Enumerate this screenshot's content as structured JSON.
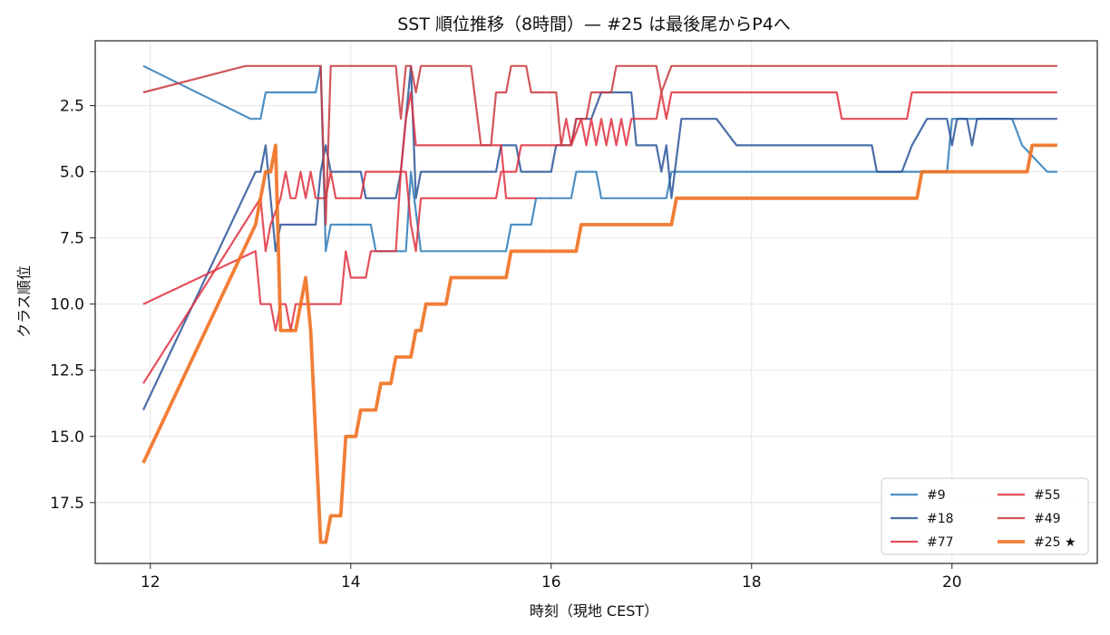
{
  "chart_data": {
    "type": "line",
    "title": "SST 順位推移（8時間）— #25 は最後尾からP4へ",
    "xlabel": "時刻（現地 CEST）",
    "ylabel": "クラス順位",
    "xlim": [
      11.45,
      21.45
    ],
    "ylim": [
      19.8,
      0.05
    ],
    "y_inverted": true,
    "grid": true,
    "legend_position": "lower-right",
    "legend_columns": 2,
    "x_ticks": [
      12,
      14,
      16,
      18,
      20
    ],
    "x_tick_labels": [
      "12",
      "14",
      "16",
      "18",
      "20"
    ],
    "y_ticks": [
      2.5,
      5,
      7.5,
      10,
      12.5,
      15,
      17.5
    ],
    "y_tick_labels": [
      "2.5",
      "5.0",
      "7.5",
      "10.0",
      "12.5",
      "15.0",
      "17.5"
    ],
    "series": [
      {
        "name": "#9",
        "color": "#2f7bb8",
        "width": 2.2,
        "opacity": 0.85,
        "points": [
          [
            11.93,
            1
          ],
          [
            13.0,
            3
          ],
          [
            13.1,
            3
          ],
          [
            13.15,
            2
          ],
          [
            13.65,
            2
          ],
          [
            13.7,
            1
          ],
          [
            13.75,
            8
          ],
          [
            13.8,
            7
          ],
          [
            14.2,
            7
          ],
          [
            14.25,
            8
          ],
          [
            14.55,
            8
          ],
          [
            14.6,
            5
          ],
          [
            14.7,
            8
          ],
          [
            15.55,
            8
          ],
          [
            15.6,
            7
          ],
          [
            15.8,
            7
          ],
          [
            15.85,
            6
          ],
          [
            16.2,
            6
          ],
          [
            16.25,
            5
          ],
          [
            16.45,
            5
          ],
          [
            16.5,
            6
          ],
          [
            17.15,
            6
          ],
          [
            17.2,
            5
          ],
          [
            19.95,
            5
          ],
          [
            20.0,
            3
          ],
          [
            20.6,
            3
          ],
          [
            20.7,
            4
          ],
          [
            20.95,
            5
          ],
          [
            21.05,
            5
          ]
        ]
      },
      {
        "name": "#18",
        "color": "#2a5599",
        "width": 2.2,
        "opacity": 0.85,
        "points": [
          [
            11.93,
            14
          ],
          [
            13.05,
            5
          ],
          [
            13.1,
            5
          ],
          [
            13.15,
            4
          ],
          [
            13.2,
            6
          ],
          [
            13.25,
            8
          ],
          [
            13.3,
            7
          ],
          [
            13.65,
            7
          ],
          [
            13.7,
            5
          ],
          [
            13.75,
            4
          ],
          [
            13.8,
            5
          ],
          [
            14.1,
            5
          ],
          [
            14.15,
            6
          ],
          [
            14.45,
            6
          ],
          [
            14.5,
            5
          ],
          [
            14.6,
            1
          ],
          [
            14.65,
            6
          ],
          [
            14.7,
            5
          ],
          [
            15.3,
            5
          ],
          [
            15.45,
            5
          ],
          [
            15.5,
            4
          ],
          [
            15.65,
            4
          ],
          [
            15.7,
            5
          ],
          [
            16.0,
            5
          ],
          [
            16.05,
            4
          ],
          [
            16.2,
            4
          ],
          [
            16.25,
            3
          ],
          [
            16.4,
            3
          ],
          [
            16.5,
            2
          ],
          [
            16.8,
            2
          ],
          [
            16.85,
            4
          ],
          [
            17.05,
            4
          ],
          [
            17.1,
            5
          ],
          [
            17.15,
            4
          ],
          [
            17.2,
            6
          ],
          [
            17.3,
            3
          ],
          [
            17.65,
            3
          ],
          [
            17.85,
            4
          ],
          [
            19.2,
            4
          ],
          [
            19.25,
            5
          ],
          [
            19.5,
            5
          ],
          [
            19.6,
            4
          ],
          [
            19.75,
            3
          ],
          [
            19.95,
            3
          ],
          [
            20.0,
            4
          ],
          [
            20.05,
            3
          ],
          [
            20.15,
            3
          ],
          [
            20.2,
            4
          ],
          [
            20.25,
            3
          ],
          [
            21.05,
            3
          ]
        ]
      },
      {
        "name": "#77",
        "color": "#e03040",
        "width": 2.2,
        "opacity": 0.85,
        "points": [
          [
            11.93,
            10
          ],
          [
            13.05,
            8
          ],
          [
            13.1,
            10
          ],
          [
            13.2,
            10
          ],
          [
            13.25,
            11
          ],
          [
            13.3,
            10
          ],
          [
            13.35,
            10
          ],
          [
            13.4,
            11
          ],
          [
            13.45,
            10
          ],
          [
            13.9,
            10
          ],
          [
            13.95,
            8
          ],
          [
            14.0,
            9
          ],
          [
            14.15,
            9
          ],
          [
            14.2,
            8
          ],
          [
            14.45,
            8
          ],
          [
            14.5,
            5
          ],
          [
            14.55,
            5
          ],
          [
            14.6,
            7
          ],
          [
            14.65,
            8
          ],
          [
            14.7,
            6
          ],
          [
            15.45,
            6
          ],
          [
            15.5,
            5
          ],
          [
            15.65,
            5
          ],
          [
            15.7,
            4
          ],
          [
            16.1,
            4
          ],
          [
            16.15,
            3
          ],
          [
            16.2,
            4
          ],
          [
            16.3,
            3
          ],
          [
            16.35,
            4
          ],
          [
            16.4,
            3
          ],
          [
            16.45,
            4
          ],
          [
            16.5,
            3
          ],
          [
            16.55,
            4
          ],
          [
            16.6,
            3
          ],
          [
            16.65,
            4
          ],
          [
            16.7,
            3
          ],
          [
            16.75,
            4
          ],
          [
            16.8,
            3
          ],
          [
            17.05,
            3
          ],
          [
            17.1,
            2
          ],
          [
            17.15,
            3
          ],
          [
            17.2,
            2
          ],
          [
            18.85,
            2
          ],
          [
            18.9,
            3
          ],
          [
            19.55,
            3
          ],
          [
            19.6,
            2
          ],
          [
            21.05,
            2
          ]
        ]
      },
      {
        "name": "#55",
        "color": "#e03040",
        "width": 2.2,
        "opacity": 0.85,
        "points": [
          [
            11.93,
            13
          ],
          [
            13.1,
            6
          ],
          [
            13.15,
            8
          ],
          [
            13.2,
            7
          ],
          [
            13.3,
            6
          ],
          [
            13.35,
            5
          ],
          [
            13.4,
            6
          ],
          [
            13.45,
            6
          ],
          [
            13.5,
            5
          ],
          [
            13.55,
            6
          ],
          [
            13.6,
            5
          ],
          [
            13.65,
            6
          ],
          [
            13.75,
            6
          ],
          [
            13.8,
            5
          ],
          [
            13.85,
            6
          ],
          [
            14.1,
            6
          ],
          [
            14.15,
            5
          ],
          [
            14.5,
            5
          ],
          [
            14.55,
            3
          ],
          [
            14.6,
            2
          ],
          [
            14.65,
            4
          ],
          [
            14.7,
            4
          ],
          [
            15.5,
            4
          ],
          [
            15.55,
            6
          ],
          [
            15.6,
            6
          ],
          [
            15.85,
            6
          ]
        ]
      },
      {
        "name": "#49",
        "color": "#c93a40",
        "width": 2.2,
        "opacity": 0.85,
        "points": [
          [
            11.93,
            2
          ],
          [
            12.95,
            1
          ],
          [
            13.7,
            1
          ],
          [
            13.75,
            7
          ],
          [
            13.8,
            1
          ],
          [
            14.45,
            1
          ],
          [
            14.5,
            3
          ],
          [
            14.55,
            1
          ],
          [
            14.6,
            1
          ],
          [
            14.65,
            2
          ],
          [
            14.7,
            1
          ],
          [
            15.2,
            1
          ],
          [
            15.3,
            4
          ],
          [
            15.4,
            4
          ],
          [
            15.45,
            2
          ],
          [
            15.55,
            2
          ],
          [
            15.6,
            1
          ],
          [
            15.75,
            1
          ],
          [
            15.8,
            2
          ],
          [
            16.05,
            2
          ],
          [
            16.1,
            4
          ],
          [
            16.2,
            4
          ],
          [
            16.25,
            3
          ],
          [
            16.35,
            3
          ],
          [
            16.4,
            2
          ],
          [
            16.6,
            2
          ],
          [
            16.65,
            1
          ],
          [
            17.05,
            1
          ],
          [
            17.1,
            2
          ],
          [
            17.2,
            1
          ],
          [
            21.05,
            1
          ]
        ]
      },
      {
        "name": "#25 ★",
        "color": "#f07020",
        "width": 3.8,
        "opacity": 0.9,
        "points": [
          [
            11.93,
            16
          ],
          [
            13.05,
            7
          ],
          [
            13.1,
            6
          ],
          [
            13.15,
            5
          ],
          [
            13.2,
            5
          ],
          [
            13.25,
            4
          ],
          [
            13.3,
            11
          ],
          [
            13.45,
            11
          ],
          [
            13.55,
            9
          ],
          [
            13.6,
            11
          ],
          [
            13.7,
            19
          ],
          [
            13.75,
            19
          ],
          [
            13.8,
            18
          ],
          [
            13.9,
            18
          ],
          [
            13.95,
            15
          ],
          [
            14.05,
            15
          ],
          [
            14.1,
            14
          ],
          [
            14.25,
            14
          ],
          [
            14.3,
            13
          ],
          [
            14.4,
            13
          ],
          [
            14.45,
            12
          ],
          [
            14.6,
            12
          ],
          [
            14.65,
            11
          ],
          [
            14.7,
            11
          ],
          [
            14.75,
            10
          ],
          [
            14.95,
            10
          ],
          [
            15.0,
            9
          ],
          [
            15.55,
            9
          ],
          [
            15.6,
            8
          ],
          [
            16.25,
            8
          ],
          [
            16.3,
            7
          ],
          [
            16.75,
            7
          ],
          [
            17.2,
            7
          ],
          [
            17.25,
            6
          ],
          [
            19.65,
            6
          ],
          [
            19.7,
            5
          ],
          [
            20.75,
            5
          ],
          [
            20.8,
            4
          ],
          [
            21.05,
            4
          ]
        ]
      }
    ]
  }
}
